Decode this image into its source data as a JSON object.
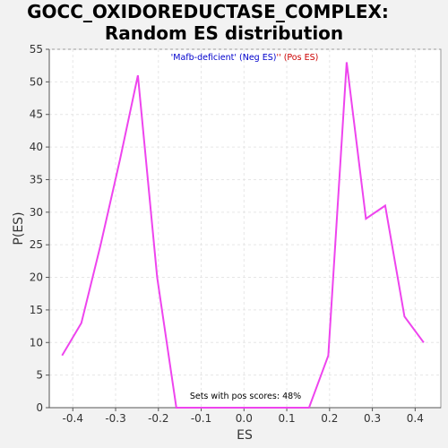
{
  "chart_data": {
    "type": "line",
    "title_line1": "GOCC_OXIDOREDUCTASE_COMPLEX:",
    "title_line2": "Random ES distribution",
    "xlabel": "ES",
    "ylabel": "P(ES)",
    "xlim": [
      -0.455,
      0.46
    ],
    "ylim": [
      0,
      55
    ],
    "xticks": [
      -0.4,
      -0.3,
      -0.2,
      -0.1,
      0.0,
      0.1,
      0.2,
      0.3,
      0.4
    ],
    "xtick_labels": [
      "-0.4",
      "-0.3",
      "-0.2",
      "-0.1",
      "0.0",
      "0.1",
      "0.2",
      "0.3",
      "0.4"
    ],
    "yticks": [
      0,
      5,
      10,
      15,
      20,
      25,
      30,
      35,
      40,
      45,
      50,
      55
    ],
    "ytick_labels": [
      "0",
      "5",
      "10",
      "15",
      "20",
      "25",
      "30",
      "35",
      "40",
      "45",
      "50",
      "55"
    ],
    "grid": true,
    "legend": {
      "placement": "top-center",
      "neg_text": "'Mafb-deficient' (Neg ES)",
      "pos_text": "'' (Pos ES)",
      "neg_color": "#0000cc",
      "pos_color": "#cc0000"
    },
    "annotation": "Sets with pos scores: 48%",
    "series": [
      {
        "color": "#ee44ee",
        "x": [
          -0.425,
          -0.38,
          -0.335,
          -0.29,
          -0.248,
          -0.203,
          -0.158,
          -0.112,
          -0.068,
          -0.022,
          0.022,
          0.068,
          0.112,
          0.152,
          0.197,
          0.24,
          0.285,
          0.33,
          0.375,
          0.42
        ],
        "y": [
          8,
          13,
          25,
          38,
          51,
          20,
          0,
          0,
          0,
          0,
          0,
          0,
          0,
          0,
          8,
          53,
          29,
          31,
          14,
          10
        ]
      }
    ]
  }
}
